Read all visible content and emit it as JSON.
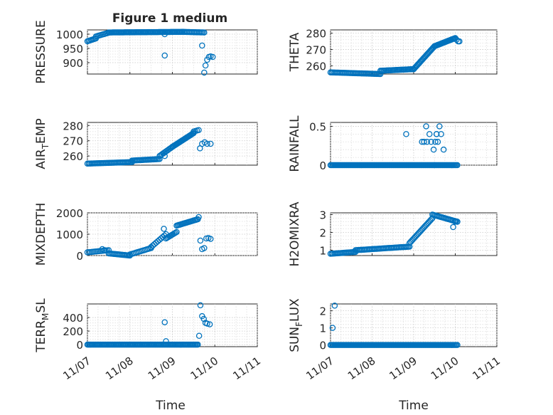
{
  "figure": {
    "title": "Figure 1 medium",
    "xlabel": "Time",
    "x_ticks": [
      "11/07",
      "11/08",
      "11/09",
      "11/10",
      "11/11"
    ]
  },
  "colors": {
    "marker": "#0072BD",
    "axis": "#262626",
    "grid": "#c8c8c8"
  },
  "chart_data": [
    {
      "type": "scatter",
      "id": "pressure",
      "ylabel": "PRESSURE",
      "ylim": [
        860,
        1015
      ],
      "yticks": [
        900,
        950,
        1000
      ],
      "ytick_labels": [
        "900",
        "950",
        "1000"
      ],
      "series": [
        {
          "name": "PRESSURE",
          "segments": [
            {
              "x0": 0.0,
              "x1": 0.2,
              "n": 8,
              "y0": 975,
              "y1": 985
            },
            {
              "x0": 0.2,
              "x1": 0.5,
              "n": 10,
              "y0": 992,
              "y1": 1005
            },
            {
              "x0": 0.5,
              "x1": 2.25,
              "n": 75,
              "y0": 1006,
              "y1": 1008
            },
            {
              "x0": 2.25,
              "x1": 2.75,
              "n": 18,
              "y0": 1008,
              "y1": 1006
            }
          ],
          "points": [
            [
              1.82,
              1000
            ],
            [
              1.82,
              925
            ],
            [
              2.7,
              960
            ],
            [
              2.75,
              865
            ],
            [
              2.78,
              890
            ],
            [
              2.82,
              910
            ],
            [
              2.86,
              920
            ],
            [
              2.9,
              922
            ],
            [
              2.95,
              920
            ]
          ]
        }
      ]
    },
    {
      "type": "scatter",
      "id": "theta",
      "ylabel": "THETA",
      "ylim": [
        255,
        282
      ],
      "yticks": [
        260,
        270,
        280
      ],
      "ytick_labels": [
        "260",
        "270",
        "280"
      ],
      "series": [
        {
          "name": "THETA",
          "segments": [
            {
              "x0": 0.0,
              "x1": 1.2,
              "n": 40,
              "y0": 256,
              "y1": 255
            },
            {
              "x0": 1.2,
              "x1": 2.0,
              "n": 30,
              "y0": 257,
              "y1": 258
            },
            {
              "x0": 2.0,
              "x1": 2.5,
              "n": 25,
              "y0": 258,
              "y1": 272
            },
            {
              "x0": 2.5,
              "x1": 3.0,
              "n": 25,
              "y0": 272,
              "y1": 277
            }
          ],
          "points": [
            [
              3.03,
              276
            ],
            [
              3.07,
              275
            ],
            [
              3.1,
              275
            ]
          ]
        }
      ]
    },
    {
      "type": "scatter",
      "id": "air_temp",
      "ylabel": "AIR_TEMP",
      "ylim": [
        254,
        282
      ],
      "yticks": [
        260,
        270,
        280
      ],
      "ytick_labels": [
        "260",
        "270",
        "280"
      ],
      "series": [
        {
          "name": "AIR_TEMP",
          "segments": [
            {
              "x0": 0.0,
              "x1": 1.05,
              "n": 35,
              "y0": 255,
              "y1": 256
            },
            {
              "x0": 1.05,
              "x1": 1.7,
              "n": 22,
              "y0": 257,
              "y1": 258
            },
            {
              "x0": 1.7,
              "x1": 2.0,
              "n": 12,
              "y0": 260,
              "y1": 266
            },
            {
              "x0": 2.0,
              "x1": 2.5,
              "n": 25,
              "y0": 266,
              "y1": 275
            },
            {
              "x0": 2.5,
              "x1": 2.62,
              "n": 4,
              "y0": 276,
              "y1": 277
            }
          ],
          "points": [
            [
              1.82,
              260
            ],
            [
              2.65,
              265
            ],
            [
              2.7,
              268
            ],
            [
              2.76,
              269
            ],
            [
              2.82,
              268
            ],
            [
              2.9,
              268
            ]
          ]
        }
      ]
    },
    {
      "type": "scatter",
      "id": "rainfall",
      "ylabel": "RAINFALL",
      "ylim": [
        0,
        0.55
      ],
      "yticks": [
        0,
        0.5
      ],
      "ytick_labels": [
        "0",
        "0.5"
      ],
      "series": [
        {
          "name": "RAINFALL",
          "segments": [
            {
              "x0": 0.0,
              "x1": 3.05,
              "n": 120,
              "y0": 0,
              "y1": 0
            }
          ],
          "points": [
            [
              1.82,
              0.4
            ],
            [
              2.2,
              0.3
            ],
            [
              2.25,
              0.3
            ],
            [
              2.3,
              0.5
            ],
            [
              2.32,
              0.3
            ],
            [
              2.38,
              0.4
            ],
            [
              2.42,
              0.3
            ],
            [
              2.48,
              0.2
            ],
            [
              2.52,
              0.3
            ],
            [
              2.55,
              0.4
            ],
            [
              2.58,
              0.3
            ],
            [
              2.62,
              0.5
            ],
            [
              2.66,
              0.4
            ],
            [
              2.72,
              0.2
            ],
            [
              2.5,
              0
            ],
            [
              2.55,
              0.4
            ]
          ]
        }
      ]
    },
    {
      "type": "scatter",
      "id": "mixdepth",
      "ylabel": "MIXDEPTH",
      "ylim": [
        0,
        2000
      ],
      "yticks": [
        0,
        1000,
        2000
      ],
      "ytick_labels": [
        "0",
        "1000",
        "2000"
      ],
      "series": [
        {
          "name": "MIXDEPTH",
          "segments": [
            {
              "x0": 0.0,
              "x1": 0.5,
              "n": 15,
              "y0": 150,
              "y1": 250
            },
            {
              "x0": 0.5,
              "x1": 1.0,
              "n": 18,
              "y0": 100,
              "y1": 0
            },
            {
              "x0": 1.0,
              "x1": 1.5,
              "n": 15,
              "y0": 50,
              "y1": 350
            },
            {
              "x0": 1.5,
              "x1": 1.85,
              "n": 10,
              "y0": 400,
              "y1": 1000
            },
            {
              "x0": 1.85,
              "x1": 2.1,
              "n": 10,
              "y0": 800,
              "y1": 1100
            },
            {
              "x0": 2.1,
              "x1": 2.6,
              "n": 20,
              "y0": 1400,
              "y1": 1700
            }
          ],
          "points": [
            [
              1.8,
              1250
            ],
            [
              2.62,
              1800
            ],
            [
              2.66,
              700
            ],
            [
              2.7,
              300
            ],
            [
              2.75,
              350
            ],
            [
              2.8,
              800
            ],
            [
              2.85,
              820
            ],
            [
              2.9,
              780
            ],
            [
              0.35,
              300
            ],
            [
              0.4,
              250
            ]
          ]
        }
      ]
    },
    {
      "type": "scatter",
      "id": "h2omixra",
      "ylabel": "H2OMIXRA",
      "ylim": [
        0.7,
        3.1
      ],
      "yticks": [
        1,
        2,
        3
      ],
      "ytick_labels": [
        "1",
        "2",
        "3"
      ],
      "series": [
        {
          "name": "H2OMIXRA",
          "segments": [
            {
              "x0": 0.0,
              "x1": 0.6,
              "n": 20,
              "y0": 0.8,
              "y1": 0.9
            },
            {
              "x0": 0.6,
              "x1": 1.9,
              "n": 45,
              "y0": 1.0,
              "y1": 1.2
            },
            {
              "x0": 1.9,
              "x1": 2.45,
              "n": 22,
              "y0": 1.4,
              "y1": 2.8
            },
            {
              "x0": 2.45,
              "x1": 3.05,
              "n": 22,
              "y0": 3.0,
              "y1": 2.6
            }
          ],
          "points": [
            [
              2.95,
              2.3
            ],
            [
              3.0,
              2.6
            ],
            [
              3.05,
              2.6
            ]
          ]
        }
      ]
    },
    {
      "type": "scatter",
      "id": "terr_msl",
      "ylabel": "TERR_MSL",
      "ylim": [
        -30,
        600
      ],
      "yticks": [
        0,
        200,
        400
      ],
      "ytick_labels": [
        "0",
        "200",
        "400"
      ],
      "series": [
        {
          "name": "TERR_MSL",
          "segments": [
            {
              "x0": 0.0,
              "x1": 2.6,
              "n": 110,
              "y0": 0,
              "y1": 0
            }
          ],
          "points": [
            [
              1.82,
              330
            ],
            [
              1.85,
              50
            ],
            [
              2.63,
              130
            ],
            [
              2.66,
              580
            ],
            [
              2.7,
              420
            ],
            [
              2.74,
              380
            ],
            [
              2.78,
              320
            ],
            [
              2.82,
              310
            ],
            [
              2.88,
              300
            ]
          ]
        }
      ]
    },
    {
      "type": "scatter",
      "id": "sun_flux",
      "ylabel": "SUN_FLUX",
      "ylim": [
        -0.1,
        2.4
      ],
      "yticks": [
        0,
        1,
        2
      ],
      "ytick_labels": [
        "0",
        "1",
        "2"
      ],
      "series": [
        {
          "name": "SUN_FLUX",
          "segments": [
            {
              "x0": 0.0,
              "x1": 3.05,
              "n": 120,
              "y0": 0,
              "y1": 0
            }
          ],
          "points": [
            [
              0.05,
              1.0
            ],
            [
              0.1,
              2.3
            ]
          ]
        }
      ]
    }
  ]
}
